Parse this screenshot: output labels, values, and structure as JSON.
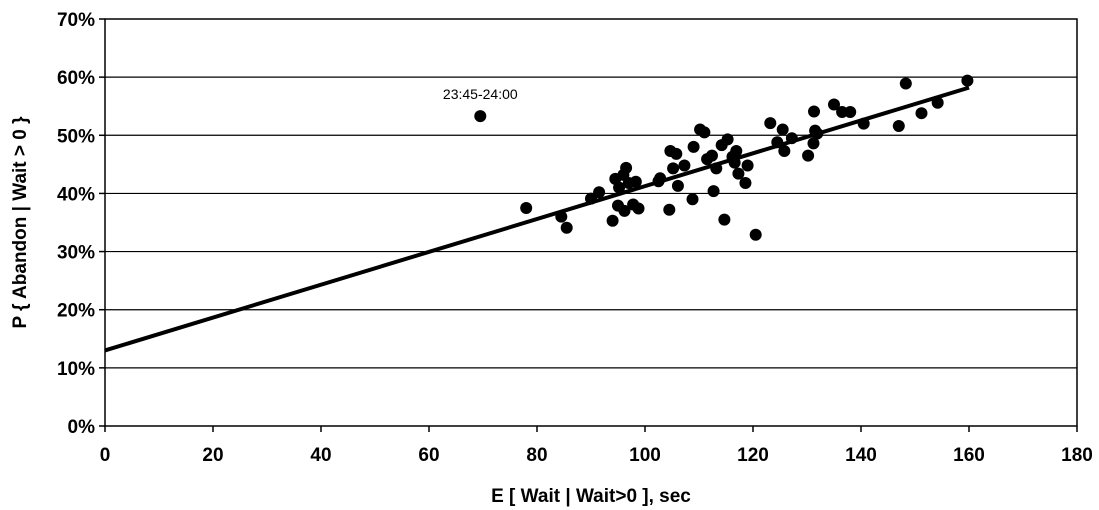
{
  "chart_data": {
    "type": "scatter",
    "xlabel": "E [ Wait | Wait>0 ], sec",
    "ylabel": "P { Abandon | Wait > 0 }",
    "xlim": [
      0,
      180
    ],
    "ylim": [
      0,
      70
    ],
    "x_ticks": [
      "0",
      "20",
      "40",
      "60",
      "80",
      "100",
      "120",
      "140",
      "160",
      "180"
    ],
    "y_ticks": [
      "0%",
      "10%",
      "20%",
      "30%",
      "40%",
      "50%",
      "60%",
      "70%"
    ],
    "x_tick_values": [
      0,
      20,
      40,
      60,
      80,
      100,
      120,
      140,
      160,
      180
    ],
    "y_tick_values": [
      0,
      10,
      20,
      30,
      40,
      50,
      60,
      70
    ],
    "grid": "horizontal",
    "colors": {
      "points": "#000000",
      "line": "#000000",
      "grid": "#000000"
    },
    "points": [
      [
        69.5,
        53.3
      ],
      [
        78,
        37.5
      ],
      [
        84.5,
        36
      ],
      [
        85.5,
        34.1
      ],
      [
        90,
        39.1
      ],
      [
        91.5,
        40.2
      ],
      [
        94,
        35.3
      ],
      [
        94.5,
        42.5
      ],
      [
        95,
        37.9
      ],
      [
        95.2,
        41
      ],
      [
        96,
        43.2
      ],
      [
        96.5,
        44.4
      ],
      [
        96.2,
        37
      ],
      [
        97,
        41.8
      ],
      [
        97.8,
        38.1
      ],
      [
        98.3,
        42
      ],
      [
        98.8,
        37.4
      ],
      [
        102.5,
        42.1
      ],
      [
        102.8,
        42.6
      ],
      [
        104.5,
        37.2
      ],
      [
        104.7,
        47.3
      ],
      [
        105.2,
        44.3
      ],
      [
        105.8,
        46.8
      ],
      [
        106.1,
        41.3
      ],
      [
        107.3,
        44.8
      ],
      [
        108.8,
        39
      ],
      [
        109,
        48
      ],
      [
        110.2,
        51
      ],
      [
        111,
        50.5
      ],
      [
        111.5,
        45.9
      ],
      [
        112.4,
        46.5
      ],
      [
        112.7,
        40.4
      ],
      [
        113.2,
        44.3
      ],
      [
        114.2,
        48.3
      ],
      [
        114.7,
        35.5
      ],
      [
        115.3,
        49.3
      ],
      [
        116.2,
        46.3
      ],
      [
        116.6,
        45.3
      ],
      [
        116.9,
        47.3
      ],
      [
        117.3,
        43.4
      ],
      [
        118.6,
        41.8
      ],
      [
        119,
        44.8
      ],
      [
        120.5,
        32.9
      ],
      [
        123.2,
        52.1
      ],
      [
        124.5,
        48.8
      ],
      [
        125.5,
        51
      ],
      [
        125.8,
        47.3
      ],
      [
        127.2,
        49.5
      ],
      [
        130.2,
        46.5
      ],
      [
        131.2,
        48.6
      ],
      [
        131.3,
        54.1
      ],
      [
        131.5,
        50.8
      ],
      [
        131.9,
        50.3
      ],
      [
        135,
        55.3
      ],
      [
        136.5,
        54
      ],
      [
        138,
        54
      ],
      [
        140.5,
        52
      ],
      [
        147,
        51.6
      ],
      [
        148.3,
        58.9
      ],
      [
        151.2,
        53.8
      ],
      [
        154.2,
        55.6
      ],
      [
        159.7,
        59.4
      ]
    ],
    "trendline": {
      "x": [
        0,
        160
      ],
      "y": [
        13,
        58.2
      ]
    },
    "annotations": [
      {
        "text": "23:45-24:00",
        "x": 69.5,
        "y": 53.3
      }
    ]
  }
}
